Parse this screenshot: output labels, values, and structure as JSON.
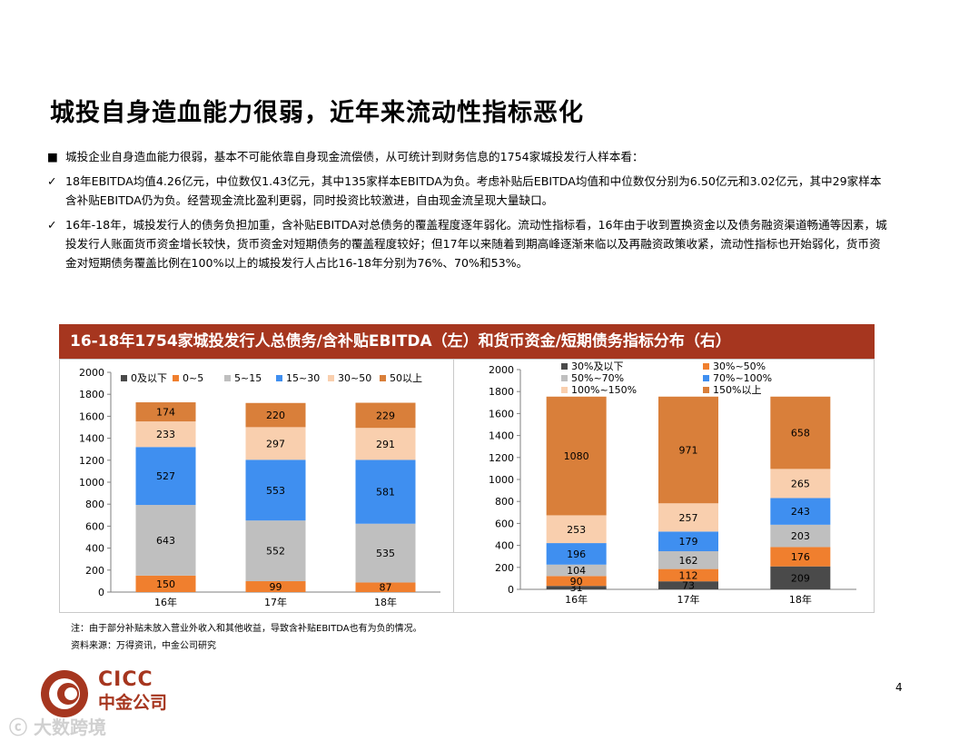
{
  "title": "城投自身造血能力很弱，近年来流动性指标恶化",
  "bullets": [
    {
      "marker": "■",
      "text": "城投企业自身造血能力很弱，基本不可能依靠自身现金流偿债，从可统计到财务信息的1754家城投发行人样本看："
    },
    {
      "marker": "✓",
      "text": "18年EBITDA均值4.26亿元，中位数仅1.43亿元，其中135家样本EBITDA为负。考虑补贴后EBITDA均值和中位数仅分别为6.50亿元和3.02亿元，其中29家样本含补贴EBITDA仍为负。经营现金流比盈利更弱，同时投资比较激进，自由现金流呈现大量缺口。"
    },
    {
      "marker": "✓",
      "text": "16年-18年，城投发行人的债务负担加重，含补贴EBITDA对总债务的覆盖程度逐年弱化。流动性指标看，16年由于收到置换资金以及债务融资渠道畅通等因素，城投发行人账面货币资金增长较快，货币资金对短期债务的覆盖程度较好；但17年以来随着到期高峰逐渐来临以及再融资政策收紧，流动性指标也开始弱化，货币资金对短期债务覆盖比例在100%以上的城投发行人占比16-18年分别为76%、70%和53%。"
    }
  ],
  "banner": "16-18年1754家城投发行人总债务/含补贴EBITDA（左）和货币资金/短期债务指标分布（右）",
  "chart_data": [
    {
      "type": "bar",
      "stacked": true,
      "categories": [
        "16年",
        "17年",
        "18年"
      ],
      "ylim": [
        0,
        2000
      ],
      "yticks": [
        0,
        200,
        400,
        600,
        800,
        1000,
        1200,
        1400,
        1600,
        1800,
        2000
      ],
      "legend_position": "top",
      "series": [
        {
          "name": "0及以下",
          "color": "#4a4a4a",
          "values": [
            null,
            null,
            null
          ]
        },
        {
          "name": "0~5",
          "color": "#f07f2e",
          "values": [
            150,
            99,
            87
          ]
        },
        {
          "name": "5~15",
          "color": "#bfbfbf",
          "values": [
            643,
            552,
            535
          ]
        },
        {
          "name": "15~30",
          "color": "#3f8ff0",
          "values": [
            527,
            553,
            581
          ]
        },
        {
          "name": "30~50",
          "color": "#f9cfae",
          "values": [
            233,
            297,
            291
          ]
        },
        {
          "name": "50以上",
          "color": "#d97f3a",
          "values": [
            174,
            220,
            229
          ]
        }
      ]
    },
    {
      "type": "bar",
      "stacked": true,
      "categories": [
        "16年",
        "17年",
        "18年"
      ],
      "ylim": [
        0,
        2000
      ],
      "yticks": [
        0,
        200,
        400,
        600,
        800,
        1000,
        1200,
        1400,
        1600,
        1800,
        2000
      ],
      "legend_position": "top",
      "series": [
        {
          "name": "30%及以下",
          "color": "#4a4a4a",
          "values": [
            31,
            73,
            209
          ]
        },
        {
          "name": "30%~50%",
          "color": "#f07f2e",
          "values": [
            90,
            112,
            176
          ]
        },
        {
          "name": "50%~70%",
          "color": "#bfbfbf",
          "values": [
            104,
            162,
            203
          ]
        },
        {
          "name": "70%~100%",
          "color": "#3f8ff0",
          "values": [
            196,
            179,
            243
          ]
        },
        {
          "name": "100%~150%",
          "color": "#f9cfae",
          "values": [
            253,
            257,
            265
          ]
        },
        {
          "name": "150%以上",
          "color": "#d97f3a",
          "values": [
            1080,
            971,
            658
          ]
        }
      ]
    }
  ],
  "notes": {
    "note": "注：由于部分补贴未放入营业外收入和其他收益，导致含补贴EBITDA也有为负的情况。",
    "source": "资料来源：万得资讯，中金公司研究"
  },
  "logo": {
    "en": "CICC",
    "cn": "中金公司"
  },
  "watermark": "大数跨境",
  "page_number": "4"
}
